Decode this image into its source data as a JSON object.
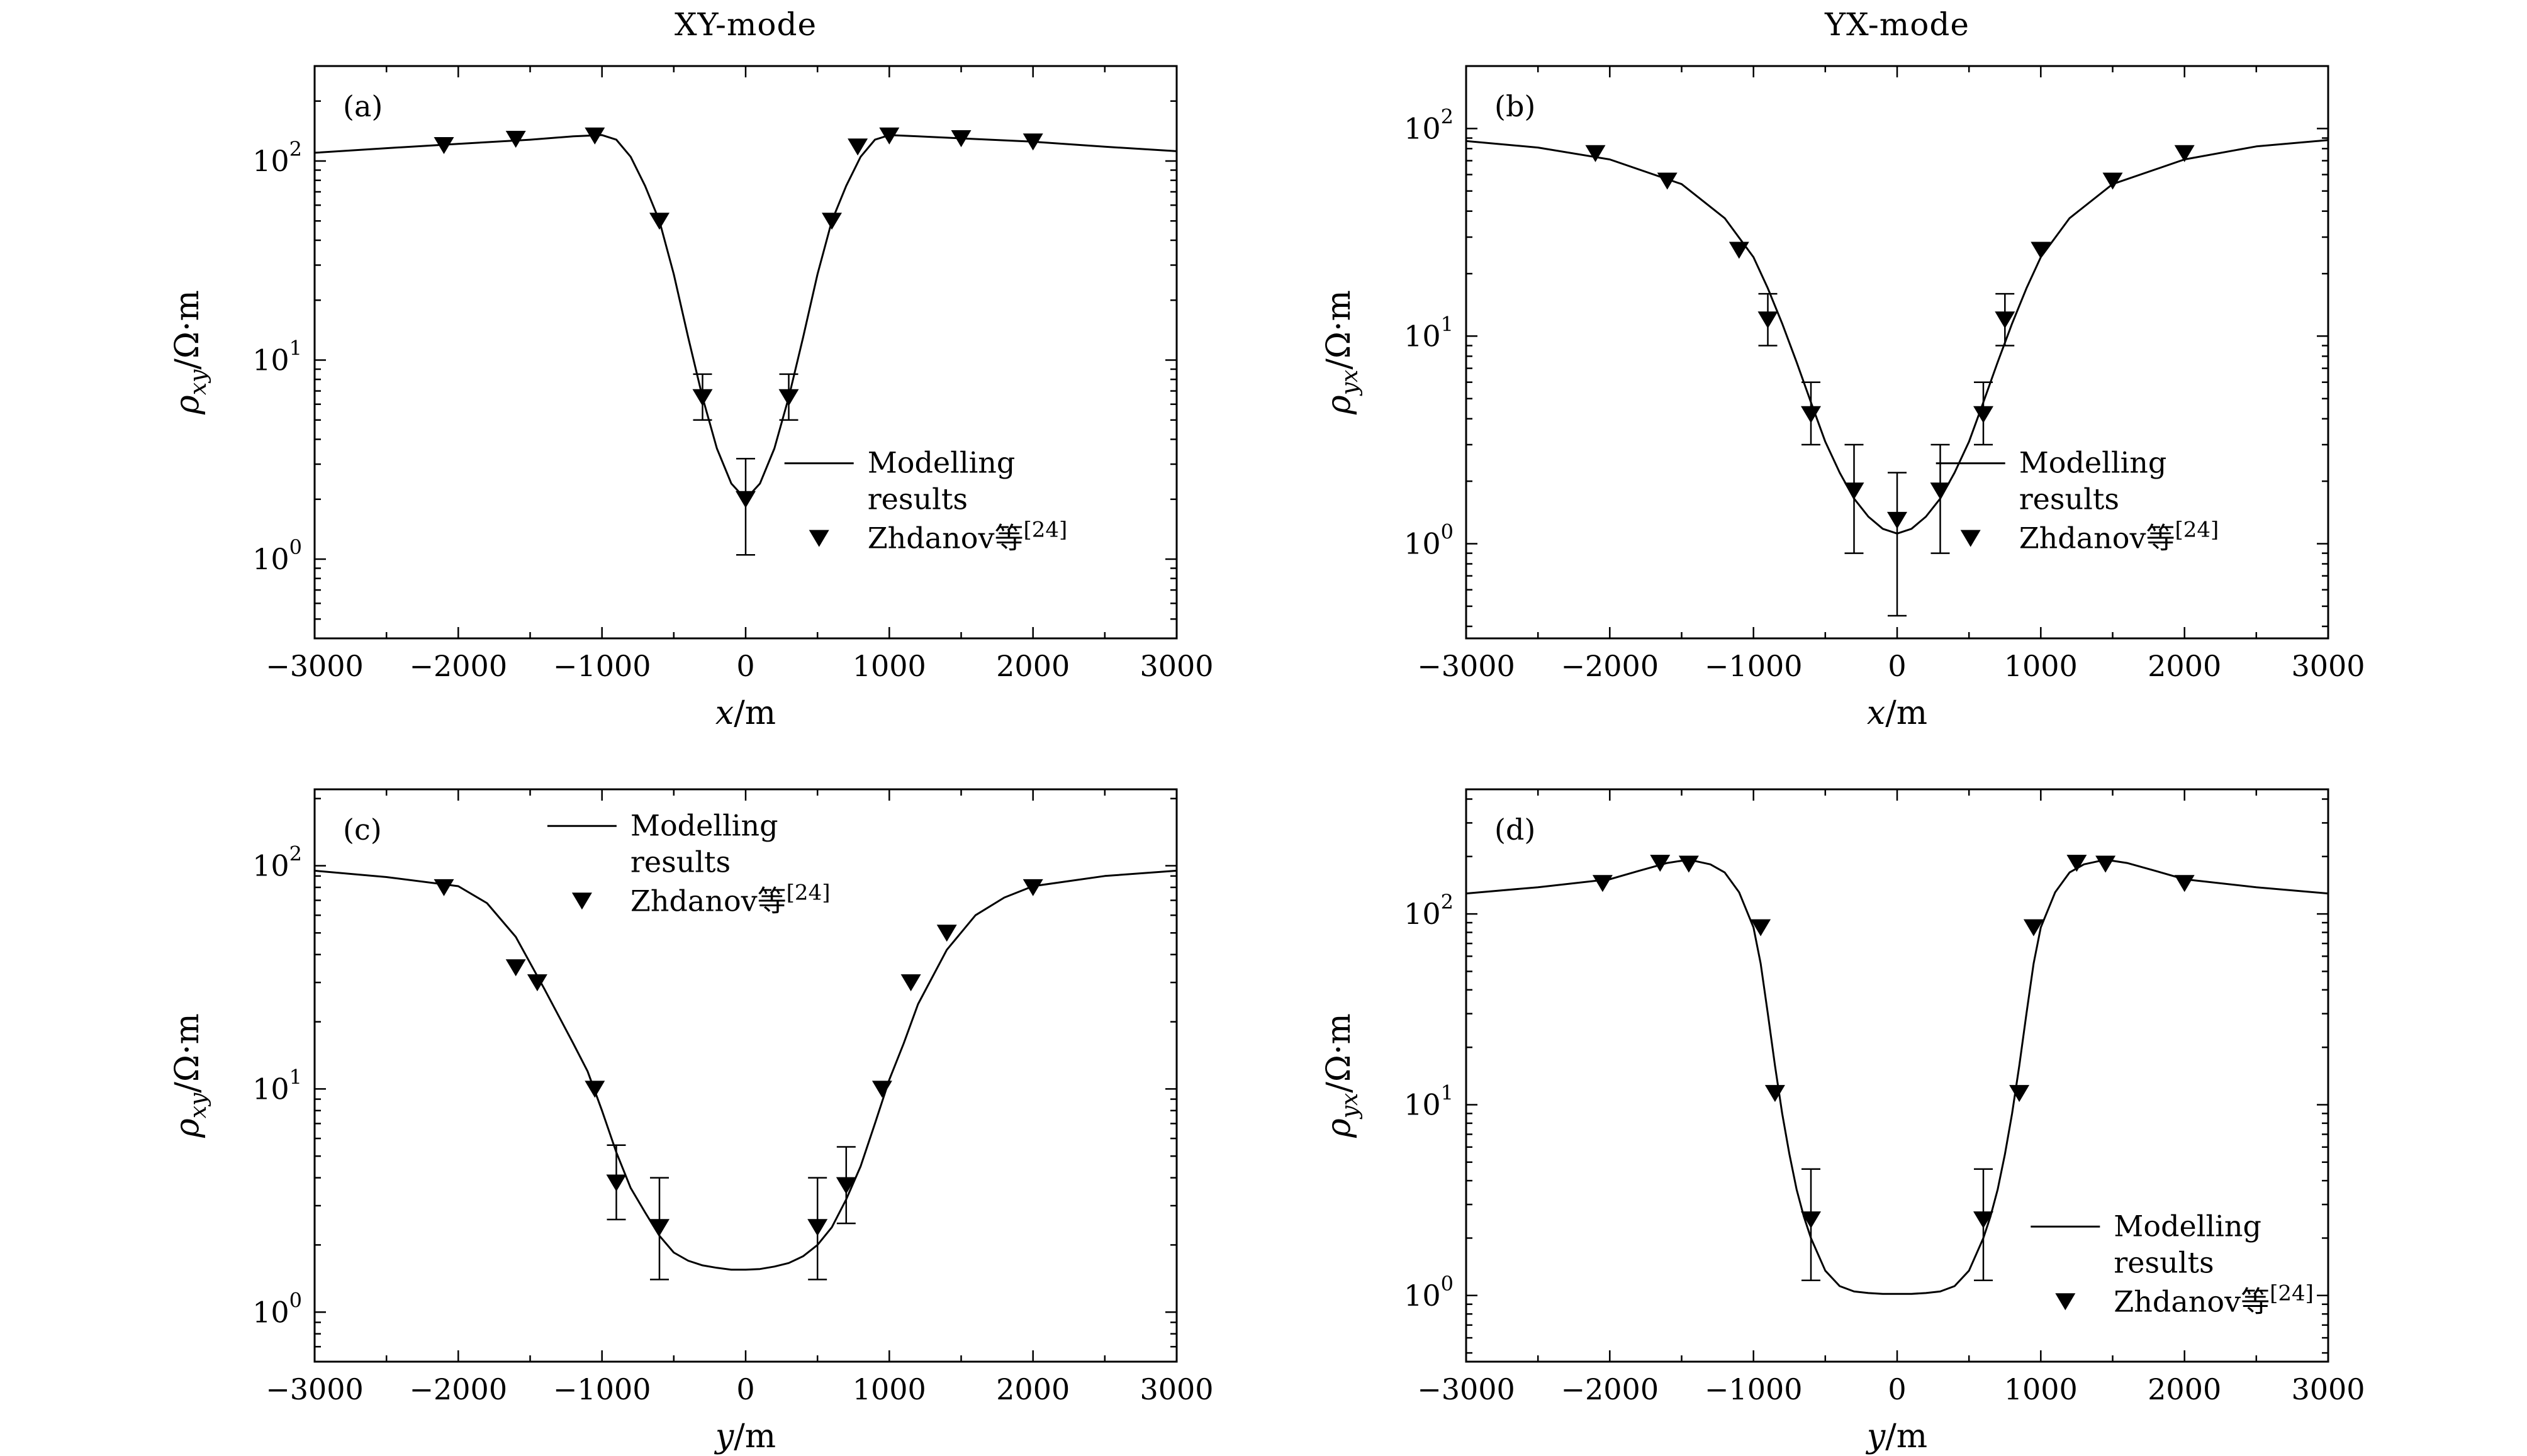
{
  "figure": {
    "column_titles": [
      "XY-mode",
      "YX-mode"
    ],
    "background": "#ffffff",
    "ink": "#000000"
  },
  "chart_data": [
    {
      "id": "a",
      "type": "line",
      "panel_label": "(a)",
      "column_title": "XY-mode",
      "xlabel": {
        "var": "x",
        "unit": "/m"
      },
      "ylabel": {
        "var": "ρ",
        "sub": "xy",
        "unit": "/Ω·m"
      },
      "xlim": [
        -3000,
        3000
      ],
      "xticks": [
        -3000,
        -2000,
        -1000,
        0,
        1000,
        2000,
        3000
      ],
      "x_minor_step": 500,
      "ylog": true,
      "ylim": [
        0.4,
        300
      ],
      "yticks": [
        1,
        10,
        100
      ],
      "legend": {
        "x": 0.545,
        "y": 0.66,
        "lines": [
          "Modelling",
          "results"
        ],
        "marker_label": "Zhdanov等",
        "marker_sup": "[24]"
      },
      "series": [
        {
          "name": "Modelling results",
          "kind": "line",
          "x": [
            -3000,
            -2500,
            -2000,
            -1500,
            -1200,
            -1000,
            -900,
            -800,
            -700,
            -600,
            -500,
            -400,
            -300,
            -200,
            -100,
            0,
            100,
            200,
            300,
            400,
            500,
            600,
            700,
            800,
            900,
            1000,
            1200,
            1500,
            2000,
            2500,
            3000
          ],
          "y": [
            110,
            116,
            122,
            128,
            133,
            135,
            128,
            105,
            75,
            50,
            27,
            13,
            6.5,
            3.6,
            2.4,
            2.0,
            2.4,
            3.6,
            6.5,
            13,
            27,
            50,
            75,
            105,
            128,
            135,
            133,
            130,
            125,
            118,
            112
          ]
        },
        {
          "name": "Zhdanov等[24]",
          "kind": "scatter-triangle-down",
          "points": [
            {
              "x": -2100,
              "y": 120
            },
            {
              "x": -1600,
              "y": 129
            },
            {
              "x": -1050,
              "y": 134
            },
            {
              "x": -600,
              "y": 50
            },
            {
              "x": -300,
              "y": 6.5,
              "lo": 5.0,
              "hi": 8.5
            },
            {
              "x": 0,
              "y": 2.0,
              "lo": 1.05,
              "hi": 3.2
            },
            {
              "x": 300,
              "y": 6.5,
              "lo": 5.0,
              "hi": 8.5
            },
            {
              "x": 600,
              "y": 50
            },
            {
              "x": 780,
              "y": 118
            },
            {
              "x": 1000,
              "y": 134
            },
            {
              "x": 1500,
              "y": 130
            },
            {
              "x": 2000,
              "y": 125
            }
          ]
        }
      ]
    },
    {
      "id": "b",
      "type": "line",
      "panel_label": "(b)",
      "column_title": "YX-mode",
      "xlabel": {
        "var": "x",
        "unit": "/m"
      },
      "ylabel": {
        "var": "ρ",
        "sub": "yx",
        "unit": "/Ω·m"
      },
      "xlim": [
        -3000,
        3000
      ],
      "xticks": [
        -3000,
        -2000,
        -1000,
        0,
        1000,
        2000,
        3000
      ],
      "x_minor_step": 500,
      "ylog": true,
      "ylim": [
        0.35,
        200
      ],
      "yticks": [
        1,
        10,
        100
      ],
      "legend": {
        "x": 0.545,
        "y": 0.66,
        "lines": [
          "Modelling",
          "results"
        ],
        "marker_label": "Zhdanov等",
        "marker_sup": "[24]"
      },
      "series": [
        {
          "name": "Modelling results",
          "kind": "line",
          "x": [
            -3000,
            -2500,
            -2000,
            -1500,
            -1200,
            -1000,
            -900,
            -800,
            -700,
            -600,
            -500,
            -400,
            -300,
            -200,
            -100,
            0,
            100,
            200,
            300,
            400,
            500,
            600,
            700,
            800,
            900,
            1000,
            1200,
            1500,
            2000,
            2500,
            3000
          ],
          "y": [
            87,
            81,
            71,
            54,
            37,
            24,
            17,
            11.5,
            7.5,
            4.8,
            3.1,
            2.2,
            1.65,
            1.35,
            1.18,
            1.12,
            1.18,
            1.35,
            1.65,
            2.2,
            3.1,
            4.8,
            7.5,
            11.5,
            17,
            24,
            37,
            54,
            71,
            82,
            88
          ]
        },
        {
          "name": "Zhdanov等[24]",
          "kind": "scatter-triangle-down",
          "points": [
            {
              "x": -2100,
              "y": 76
            },
            {
              "x": -1600,
              "y": 56
            },
            {
              "x": -1100,
              "y": 26
            },
            {
              "x": -900,
              "y": 12,
              "lo": 9,
              "hi": 16
            },
            {
              "x": -600,
              "y": 4.2,
              "lo": 3.0,
              "hi": 6.0
            },
            {
              "x": -300,
              "y": 1.8,
              "lo": 0.9,
              "hi": 3.0
            },
            {
              "x": 0,
              "y": 1.3,
              "lo": 0.45,
              "hi": 2.2
            },
            {
              "x": 300,
              "y": 1.8,
              "lo": 0.9,
              "hi": 3.0
            },
            {
              "x": 600,
              "y": 4.2,
              "lo": 3.0,
              "hi": 6.0
            },
            {
              "x": 750,
              "y": 12,
              "lo": 9,
              "hi": 16
            },
            {
              "x": 1000,
              "y": 26
            },
            {
              "x": 1500,
              "y": 56
            },
            {
              "x": 2000,
              "y": 76
            }
          ]
        }
      ]
    },
    {
      "id": "c",
      "type": "line",
      "panel_label": "(c)",
      "column_title": "XY-mode",
      "xlabel": {
        "var": "y",
        "unit": "/m"
      },
      "ylabel": {
        "var": "ρ",
        "sub": "xy",
        "unit": "/Ω·m"
      },
      "xlim": [
        -3000,
        3000
      ],
      "xticks": [
        -3000,
        -2000,
        -1000,
        0,
        1000,
        2000,
        3000
      ],
      "x_minor_step": 500,
      "ylog": true,
      "ylim": [
        0.6,
        220
      ],
      "yticks": [
        1,
        10,
        100
      ],
      "legend": {
        "x": 0.27,
        "y": 0.03,
        "lines": [
          "Modelling",
          "results"
        ],
        "marker_label": "Zhdanov等",
        "marker_sup": "[24]"
      },
      "series": [
        {
          "name": "Modelling results",
          "kind": "line",
          "x": [
            -3000,
            -2500,
            -2000,
            -1800,
            -1600,
            -1400,
            -1200,
            -1100,
            -1000,
            -900,
            -800,
            -700,
            -600,
            -500,
            -400,
            -300,
            -200,
            -100,
            0,
            100,
            200,
            300,
            400,
            500,
            600,
            700,
            800,
            900,
            1000,
            1100,
            1200,
            1400,
            1600,
            1800,
            2000,
            2500,
            3000
          ],
          "y": [
            95,
            89,
            81,
            68,
            48,
            28,
            16,
            12,
            8,
            5.2,
            3.6,
            2.8,
            2.2,
            1.85,
            1.7,
            1.62,
            1.58,
            1.55,
            1.55,
            1.56,
            1.6,
            1.66,
            1.78,
            2.0,
            2.4,
            3.2,
            4.5,
            7,
            11,
            16,
            24,
            42,
            60,
            72,
            81,
            90,
            95
          ]
        },
        {
          "name": "Zhdanov等[24]",
          "kind": "scatter-triangle-down",
          "points": [
            {
              "x": -2100,
              "y": 80
            },
            {
              "x": -1600,
              "y": 35
            },
            {
              "x": -1450,
              "y": 30
            },
            {
              "x": -1050,
              "y": 10
            },
            {
              "x": -900,
              "y": 3.8,
              "lo": 2.6,
              "hi": 5.6
            },
            {
              "x": -600,
              "y": 2.4,
              "lo": 1.4,
              "hi": 4.0
            },
            {
              "x": 500,
              "y": 2.4,
              "lo": 1.4,
              "hi": 4.0
            },
            {
              "x": 700,
              "y": 3.7,
              "lo": 2.5,
              "hi": 5.5
            },
            {
              "x": 950,
              "y": 10
            },
            {
              "x": 1150,
              "y": 30
            },
            {
              "x": 1400,
              "y": 50
            },
            {
              "x": 2000,
              "y": 80
            }
          ]
        }
      ]
    },
    {
      "id": "d",
      "type": "line",
      "panel_label": "(d)",
      "column_title": "YX-mode",
      "xlabel": {
        "var": "y",
        "unit": "/m"
      },
      "ylabel": {
        "var": "ρ",
        "sub": "yx",
        "unit": "/Ω·m"
      },
      "xlim": [
        -3000,
        3000
      ],
      "xticks": [
        -3000,
        -2000,
        -1000,
        0,
        1000,
        2000,
        3000
      ],
      "x_minor_step": 500,
      "ylog": true,
      "ylim": [
        0.45,
        450
      ],
      "yticks": [
        1,
        10,
        100
      ],
      "legend": {
        "x": 0.655,
        "y": 0.73,
        "lines": [
          "Modelling",
          "results"
        ],
        "marker_label": "Zhdanov等",
        "marker_sup": "[24]"
      },
      "series": [
        {
          "name": "Modelling results",
          "kind": "line",
          "x": [
            -3000,
            -2500,
            -2000,
            -1800,
            -1600,
            -1500,
            -1400,
            -1300,
            -1200,
            -1100,
            -1000,
            -950,
            -900,
            -850,
            -800,
            -750,
            -700,
            -650,
            -600,
            -500,
            -400,
            -300,
            -200,
            -100,
            0,
            100,
            200,
            300,
            400,
            500,
            600,
            650,
            700,
            750,
            800,
            850,
            900,
            950,
            1000,
            1100,
            1200,
            1300,
            1400,
            1500,
            1600,
            1800,
            2000,
            2500,
            3000
          ],
          "y": [
            128,
            138,
            152,
            168,
            185,
            190,
            189,
            182,
            165,
            130,
            85,
            55,
            30,
            16,
            9,
            5.5,
            3.6,
            2.6,
            2.0,
            1.35,
            1.12,
            1.05,
            1.03,
            1.02,
            1.02,
            1.02,
            1.03,
            1.05,
            1.12,
            1.35,
            2.0,
            2.6,
            3.6,
            5.5,
            9,
            16,
            30,
            55,
            85,
            130,
            165,
            182,
            189,
            190,
            185,
            168,
            152,
            138,
            128
          ]
        },
        {
          "name": "Zhdanov等[24]",
          "kind": "scatter-triangle-down",
          "points": [
            {
              "x": -2050,
              "y": 145
            },
            {
              "x": -1650,
              "y": 185
            },
            {
              "x": -1450,
              "y": 183
            },
            {
              "x": -950,
              "y": 85
            },
            {
              "x": -850,
              "y": 11.5
            },
            {
              "x": -600,
              "y": 2.5,
              "lo": 1.2,
              "hi": 4.6
            },
            {
              "x": 600,
              "y": 2.5,
              "lo": 1.2,
              "hi": 4.6
            },
            {
              "x": 850,
              "y": 11.5
            },
            {
              "x": 950,
              "y": 85
            },
            {
              "x": 1250,
              "y": 185
            },
            {
              "x": 1450,
              "y": 183
            },
            {
              "x": 2000,
              "y": 145
            }
          ]
        }
      ]
    }
  ]
}
